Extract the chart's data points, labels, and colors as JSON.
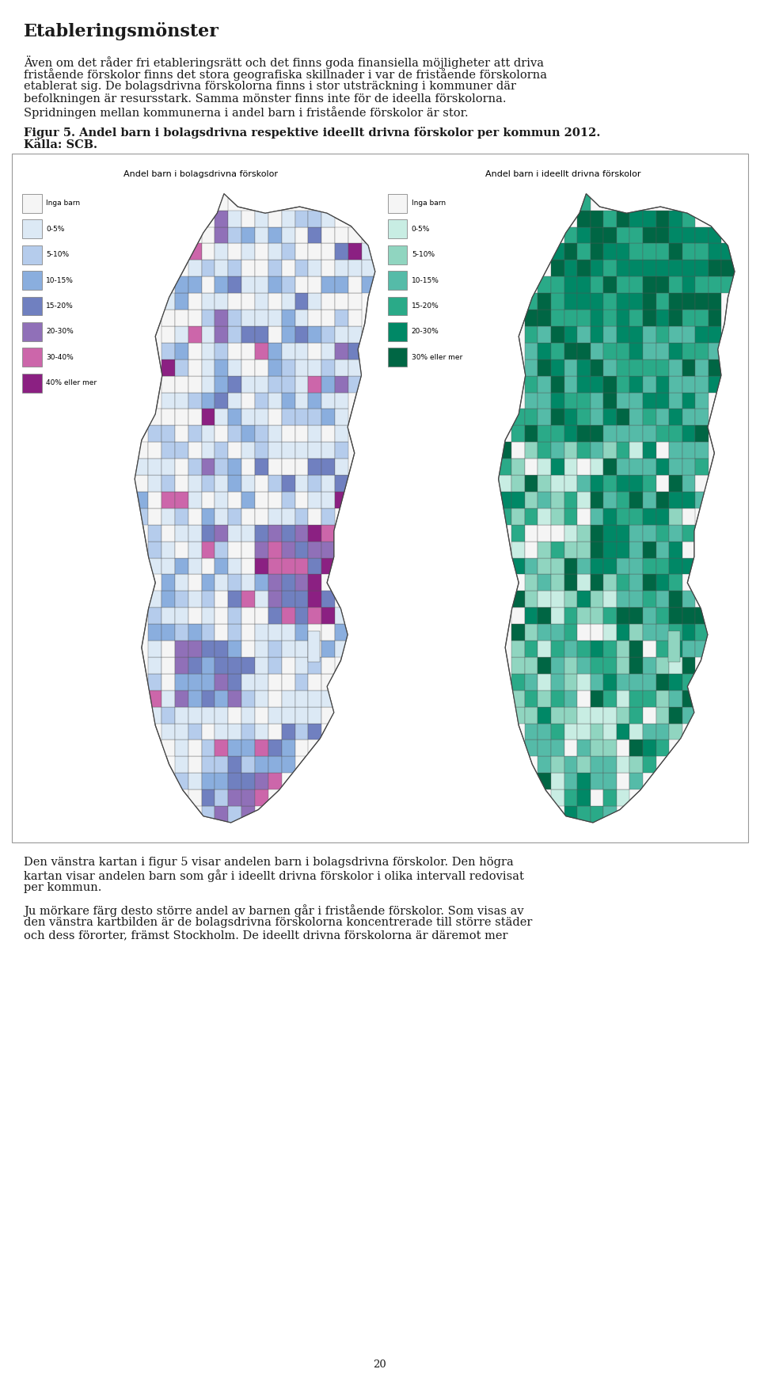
{
  "title": "Etableringsmönster",
  "paragraph1_lines": [
    "Även om det råder fri etableringsrätt och det finns goda finansiella möjligheter att driva",
    "fristående förskolor finns det stora geografiska skillnader i var de fristående förskolorna",
    "etablerat sig. De bolagsdrivna förskolorna finns i stor utsträckning i kommuner där",
    "befolkningen är resursstark. Samma mönster finns inte för de ideella förskolorna.",
    "Spridningen mellan kommunerna i andel barn i fristående förskolor är stor."
  ],
  "figure_caption_bold": "Figur 5. Andel barn i bolagsdrivna respektive ideellt drivna förskolor per kommun 2012.",
  "figure_caption_bold2": "Källa: SCB.",
  "map_left_title": "Andel barn i bolagsdrivna förskolor",
  "map_right_title": "Andel barn i ideellt drivna förskolor",
  "legend_left_labels": [
    "Inga barn",
    "0-5%",
    "5-10%",
    "10-15%",
    "15-20%",
    "20-30%",
    "30-40%",
    "40% eller mer"
  ],
  "legend_right_labels": [
    "Inga barn",
    "0-5%",
    "5-10%",
    "10-15%",
    "15-20%",
    "20-30%",
    "30% eller mer"
  ],
  "legend_left_colors": [
    "#f5f5f5",
    "#dce9f5",
    "#b5ccec",
    "#8aaede",
    "#7080c0",
    "#9070b8",
    "#cc66aa",
    "#8B2082"
  ],
  "legend_right_colors": [
    "#f5f5f5",
    "#c8ede3",
    "#90d5c0",
    "#55bba8",
    "#2aaa88",
    "#008866",
    "#006644"
  ],
  "paragraph2_lines": [
    "Den vänstra kartan i figur 5 visar andelen barn i bolagsdrivna förskolor. Den högra",
    "kartan visar andelen barn som går i ideellt drivna förskolor i olika intervall redovisat",
    "per kommun."
  ],
  "paragraph3_lines": [
    "Ju mörkare färg desto större andel av barnen går i fristående förskolor. Som visas av",
    "den vänstra kartbilden är de bolagsdrivna förskolorna koncentrerade till större städer",
    "och dess förorter, främst Stockholm. De ideellt drivna förskolorna är däremot mer"
  ],
  "page_number": "20",
  "bg_color": "#ffffff",
  "text_color": "#1a1a1a",
  "title_fontsize": 16,
  "body_fontsize": 10.5,
  "caption_fontsize": 10.5
}
